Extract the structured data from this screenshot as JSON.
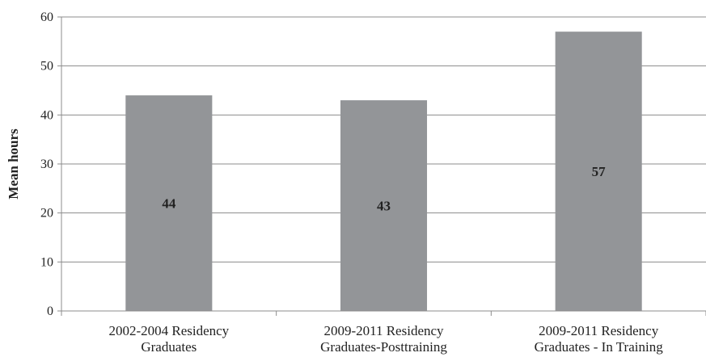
{
  "chart_data": {
    "type": "bar",
    "title": "",
    "xlabel": "",
    "ylabel": "Mean hours",
    "ylim": [
      0,
      60
    ],
    "yticks": [
      0,
      10,
      20,
      30,
      40,
      50,
      60
    ],
    "grid": true,
    "categories": [
      [
        "2002-2004 Residency",
        "Graduates"
      ],
      [
        "2009-2011 Residency",
        "Graduates-Posttraining"
      ],
      [
        "2009-2011 Residency",
        "Graduates - In Training"
      ]
    ],
    "values": [
      44,
      43,
      57
    ],
    "data_labels": [
      "44",
      "43",
      "57"
    ],
    "colors": {
      "bar": "#939598",
      "grid": "#8c8c8c",
      "axis": "#8c8c8c"
    }
  }
}
